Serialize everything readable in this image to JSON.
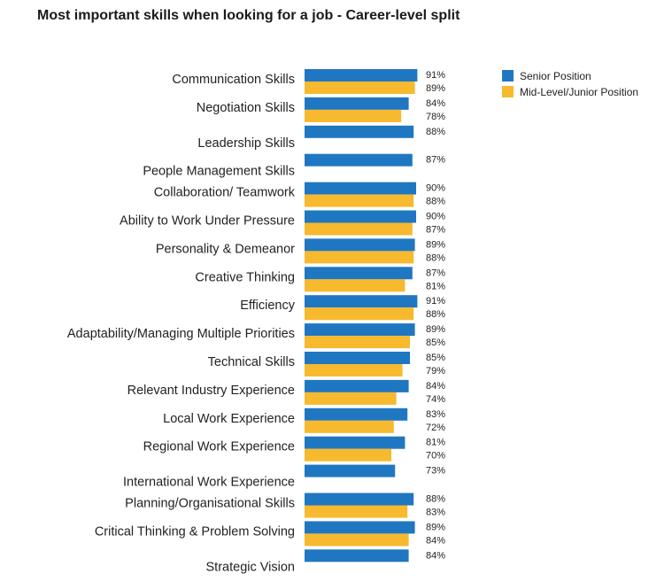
{
  "chart_data": {
    "type": "bar",
    "orientation": "horizontal",
    "title": "Most important skills when looking for a job - Career-level split",
    "legend_position": "top-right",
    "grid": false,
    "categories": [
      "Communication Skills",
      "Negotiation Skills",
      "Leadership Skills",
      "People Management Skills",
      "Collaboration/ Teamwork",
      "Ability to Work Under Pressure",
      "Personality & Demeanor",
      "Creative Thinking",
      "Efficiency",
      "Adaptability/Managing Multiple Priorities",
      "Technical Skills",
      "Relevant Industry Experience",
      "Local Work Experience",
      "Regional Work Experience",
      "International Work Experience",
      "Planning/Organisational Skills",
      "Critical Thinking & Problem Solving",
      "Strategic Vision"
    ],
    "series": [
      {
        "name": "Senior Position",
        "color": "#1f77c1",
        "values": [
          91,
          84,
          88,
          87,
          90,
          90,
          89,
          87,
          91,
          89,
          85,
          84,
          83,
          81,
          73,
          88,
          89,
          84
        ],
        "labels": [
          "91%",
          "84%",
          "88%",
          "87%",
          "90%",
          "90%",
          "89%",
          "87%",
          "91%",
          "89%",
          "85%",
          "84%",
          "83%",
          "81%",
          "73%",
          "88%",
          "89%",
          "84%"
        ]
      },
      {
        "name": "Mid-Level/Junior Position",
        "color": "#f7b92d",
        "values": [
          89,
          78,
          null,
          null,
          88,
          87,
          88,
          81,
          88,
          85,
          79,
          74,
          72,
          70,
          null,
          83,
          84,
          null
        ],
        "labels": [
          "89%",
          "78%",
          null,
          null,
          "88%",
          "87%",
          "88%",
          "81%",
          "88%",
          "85%",
          "79%",
          "74%",
          "72%",
          "70%",
          null,
          "83%",
          "84%",
          null
        ]
      }
    ]
  }
}
